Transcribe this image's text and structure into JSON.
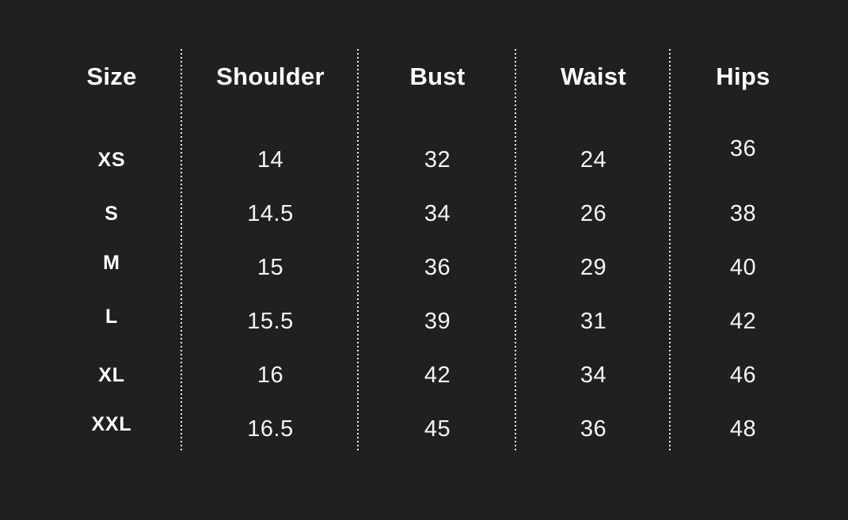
{
  "colors": {
    "background": "#212020",
    "header_text": "#ffffff",
    "value_text": "#f5f5f5",
    "separator": "#ededed"
  },
  "table": {
    "headers": [
      "Size",
      "Shoulder",
      "Bust",
      "Waist",
      "Hips"
    ],
    "rows": [
      {
        "size": "XS",
        "shoulder": "14",
        "bust": "32",
        "waist": "24",
        "hips": "36"
      },
      {
        "size": "S",
        "shoulder": "14.5",
        "bust": "34",
        "waist": "26",
        "hips": "38"
      },
      {
        "size": "M",
        "shoulder": "15",
        "bust": "36",
        "waist": "29",
        "hips": "40"
      },
      {
        "size": "L",
        "shoulder": "15.5",
        "bust": "39",
        "waist": "31",
        "hips": "42"
      },
      {
        "size": "XL",
        "shoulder": "16",
        "bust": "42",
        "waist": "34",
        "hips": "46"
      },
      {
        "size": "XXL",
        "shoulder": "16.5",
        "bust": "45",
        "waist": "36",
        "hips": "48"
      }
    ]
  },
  "chart_data": {
    "type": "table",
    "columns": [
      "Size",
      "Shoulder",
      "Bust",
      "Waist",
      "Hips"
    ],
    "rows": [
      [
        "XS",
        14,
        32,
        24,
        36
      ],
      [
        "S",
        14.5,
        34,
        26,
        38
      ],
      [
        "M",
        15,
        36,
        29,
        40
      ],
      [
        "L",
        15.5,
        39,
        31,
        42
      ],
      [
        "XL",
        16,
        42,
        34,
        46
      ],
      [
        "XXL",
        16.5,
        45,
        36,
        48
      ]
    ],
    "layout": {
      "grid": "off",
      "separators": "dotted-vertical",
      "theme": "dark"
    }
  }
}
